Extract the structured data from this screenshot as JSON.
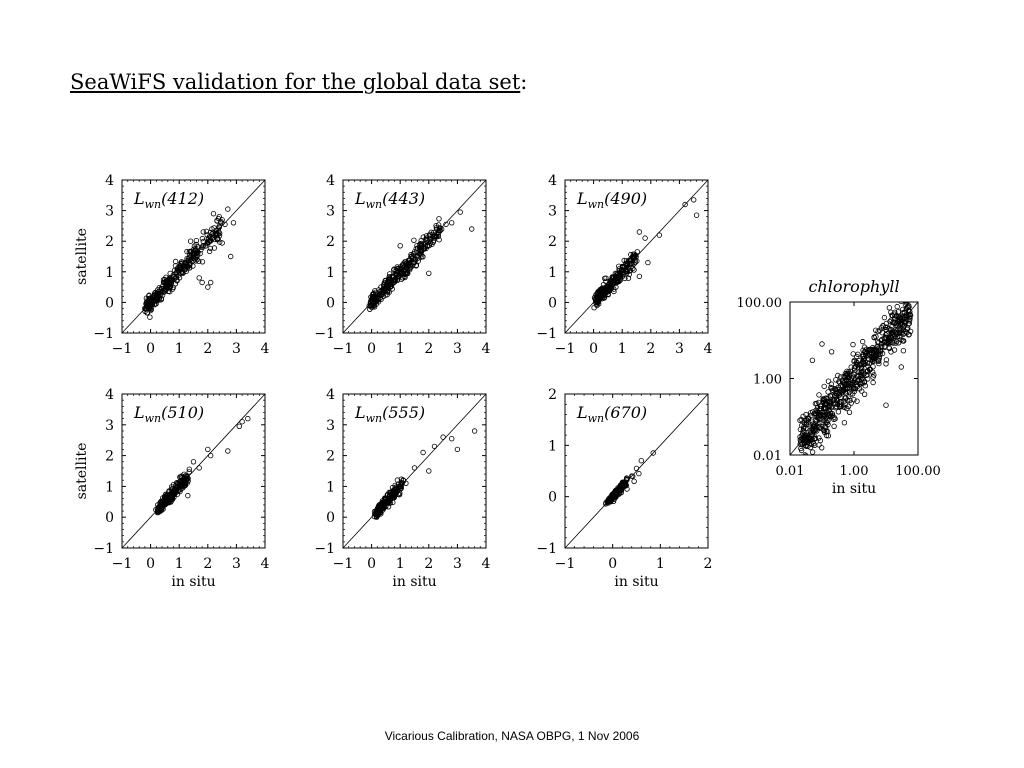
{
  "slide": {
    "title_main": "SeaWiFS validation for the global data set",
    "title_suffix": ":",
    "footer": "Vicarious Calibration, NASA OBPG, 1 Nov 2006"
  },
  "chart_data": [
    {
      "type": "scatter",
      "title_main": "L",
      "title_sub": "wn",
      "title_rest": "(412)",
      "xlabel": "",
      "ylabel": "satellite",
      "xlim": [
        -1,
        4
      ],
      "ylim": [
        -1,
        4
      ],
      "xticks": [
        "−1",
        "0",
        "1",
        "2",
        "3",
        "4"
      ],
      "yticks": [
        "−1",
        "0",
        "1",
        "2",
        "3",
        "4"
      ],
      "cloud": {
        "x_range": [
          -0.1,
          2.5
        ],
        "spread": 0.22,
        "count": 320
      },
      "points": [
        [
          2.4,
          2.8
        ],
        [
          2.5,
          2.7
        ],
        [
          2.6,
          2.55
        ],
        [
          2.7,
          3.05
        ],
        [
          2.8,
          1.5
        ],
        [
          2.9,
          2.6
        ],
        [
          1.7,
          0.8
        ],
        [
          1.8,
          0.65
        ],
        [
          2.0,
          0.5
        ],
        [
          2.1,
          0.65
        ],
        [
          1.4,
          2.0
        ],
        [
          2.2,
          2.9
        ]
      ]
    },
    {
      "type": "scatter",
      "title_main": "L",
      "title_sub": "wn",
      "title_rest": "(443)",
      "xlabel": "",
      "ylabel": "",
      "xlim": [
        -1,
        4
      ],
      "ylim": [
        -1,
        4
      ],
      "xticks": [
        "−1",
        "0",
        "1",
        "2",
        "3",
        "4"
      ],
      "yticks": [
        "−1",
        "0",
        "1",
        "2",
        "3",
        "4"
      ],
      "cloud": {
        "x_range": [
          0.0,
          2.4
        ],
        "spread": 0.2,
        "count": 320
      },
      "points": [
        [
          2.6,
          2.55
        ],
        [
          2.8,
          2.6
        ],
        [
          3.1,
          2.95
        ],
        [
          3.5,
          2.4
        ],
        [
          2.4,
          2.35
        ],
        [
          1.0,
          1.85
        ],
        [
          2.0,
          0.95
        ]
      ]
    },
    {
      "type": "scatter",
      "title_main": "L",
      "title_sub": "wn",
      "title_rest": "(490)",
      "xlabel": "",
      "ylabel": "",
      "xlim": [
        -1,
        4
      ],
      "ylim": [
        -1,
        4
      ],
      "xticks": [
        "−1",
        "0",
        "1",
        "2",
        "3",
        "4"
      ],
      "yticks": [
        "−1",
        "0",
        "1",
        "2",
        "3",
        "4"
      ],
      "cloud": {
        "x_range": [
          0.1,
          1.5
        ],
        "spread": 0.17,
        "count": 260
      },
      "points": [
        [
          1.6,
          2.3
        ],
        [
          1.8,
          2.1
        ],
        [
          2.3,
          2.2
        ],
        [
          3.2,
          3.2
        ],
        [
          3.5,
          3.35
        ],
        [
          3.6,
          2.85
        ],
        [
          1.9,
          1.3
        ],
        [
          1.6,
          0.85
        ]
      ]
    },
    {
      "type": "scatter",
      "title_main": "L",
      "title_sub": "wn",
      "title_rest": "(510)",
      "xlabel": "in situ",
      "ylabel": "satellite",
      "xlim": [
        -1,
        4
      ],
      "ylim": [
        -1,
        4
      ],
      "xticks": [
        "−1",
        "0",
        "1",
        "2",
        "3",
        "4"
      ],
      "yticks": [
        "−1",
        "0",
        "1",
        "2",
        "3",
        "4"
      ],
      "cloud": {
        "x_range": [
          0.3,
          1.3
        ],
        "spread": 0.15,
        "count": 230
      },
      "points": [
        [
          1.5,
          1.8
        ],
        [
          1.7,
          1.6
        ],
        [
          2.0,
          2.2
        ],
        [
          2.1,
          2.0
        ],
        [
          2.7,
          2.15
        ],
        [
          3.1,
          2.95
        ],
        [
          3.2,
          3.1
        ],
        [
          3.4,
          3.2
        ],
        [
          1.3,
          0.7
        ]
      ]
    },
    {
      "type": "scatter",
      "title_main": "L",
      "title_sub": "wn",
      "title_rest": "(555)",
      "xlabel": "in situ",
      "ylabel": "",
      "xlim": [
        -1,
        4
      ],
      "ylim": [
        -1,
        4
      ],
      "xticks": [
        "−1",
        "0",
        "1",
        "2",
        "3",
        "4"
      ],
      "yticks": [
        "−1",
        "0",
        "1",
        "2",
        "3",
        "4"
      ],
      "cloud": {
        "x_range": [
          0.2,
          1.1
        ],
        "spread": 0.12,
        "count": 200
      },
      "points": [
        [
          1.5,
          1.6
        ],
        [
          1.8,
          2.1
        ],
        [
          2.2,
          2.3
        ],
        [
          2.5,
          2.6
        ],
        [
          2.8,
          2.55
        ],
        [
          3.0,
          2.2
        ],
        [
          3.6,
          2.8
        ],
        [
          1.2,
          1.1
        ],
        [
          2.0,
          1.5
        ]
      ]
    },
    {
      "type": "scatter",
      "title_main": "L",
      "title_sub": "wn",
      "title_rest": "(670)",
      "xlabel": "in situ",
      "ylabel": "",
      "xlim": [
        -1,
        2
      ],
      "ylim": [
        -1,
        2
      ],
      "xticks": [
        "−1",
        "0",
        "1",
        "2"
      ],
      "yticks": [
        "−1",
        "0",
        "1",
        "2"
      ],
      "cloud": {
        "x_range": [
          -0.05,
          0.3
        ],
        "spread": 0.05,
        "count": 150
      },
      "points": [
        [
          0.4,
          0.4
        ],
        [
          0.5,
          0.55
        ],
        [
          0.55,
          0.45
        ],
        [
          0.6,
          0.7
        ],
        [
          0.85,
          0.85
        ],
        [
          0.3,
          0.15
        ],
        [
          0.45,
          0.3
        ]
      ]
    },
    {
      "type": "scatter",
      "log": true,
      "title_main": "chlorophyll",
      "title_sub": "",
      "title_rest": "",
      "xlabel": "in situ",
      "ylabel": "",
      "xlim": [
        0.01,
        100
      ],
      "ylim": [
        0.01,
        100
      ],
      "xticks": [
        "0.01",
        "1.00",
        "100.00"
      ],
      "yticks": [
        "0.01",
        "1.00",
        "100.00"
      ],
      "cloud": {
        "x_range": [
          0.02,
          60
        ],
        "spread": 0.3,
        "count": 650
      },
      "points": [
        [
          0.05,
          3.0
        ],
        [
          0.2,
          5.0
        ],
        [
          0.03,
          0.01
        ],
        [
          0.5,
          0.07
        ],
        [
          10.0,
          0.2
        ],
        [
          0.1,
          8.0
        ],
        [
          30.0,
          2.0
        ]
      ]
    }
  ]
}
